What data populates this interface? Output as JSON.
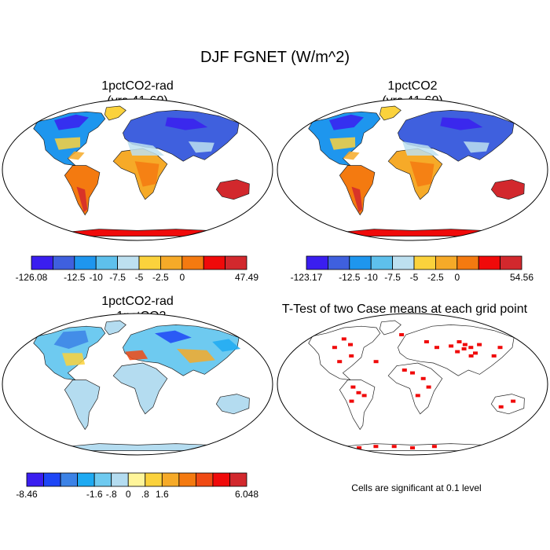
{
  "figure": {
    "title": "DJF FGNET (W/m^2)",
    "note": "Cells are significant at 0.1 level"
  },
  "panels": [
    {
      "title": "1pctCO2-rad\n(yrs 41-60)"
    },
    {
      "title": "1pctCO2\n(yrs 41-60)"
    },
    {
      "title": "1pctCO2-rad\n- 1pctCO2"
    },
    {
      "title": "T-Test of two Case means at each grid point"
    }
  ],
  "colorbars": [
    {
      "labels": [
        "-126.08",
        "-12.5",
        "-10",
        "-7.5",
        "-5",
        "-2.5",
        "0",
        "47.49"
      ],
      "colors": [
        "#3a1ef0",
        "#3f60de",
        "#1e96ee",
        "#5ec0ec",
        "#bde0f0",
        "#fbd23c",
        "#f6aa28",
        "#f47a10",
        "#f00a0a",
        "#d2282d"
      ]
    },
    {
      "labels": [
        "-123.17",
        "-12.5",
        "-10",
        "-7.5",
        "-5",
        "-2.5",
        "0",
        "54.56"
      ],
      "colors": [
        "#3a1ef0",
        "#3f60de",
        "#1e96ee",
        "#5ec0ec",
        "#bde0f0",
        "#fbd23c",
        "#f6aa28",
        "#f47a10",
        "#f00a0a",
        "#d2282d"
      ]
    },
    {
      "labels": [
        "-8.46",
        "-1.6",
        "-.8",
        "0",
        ".8",
        "1.6",
        "6.048"
      ],
      "colors": [
        "#3a1ef0",
        "#1e46f6",
        "#3c82e6",
        "#1eaaf2",
        "#6ecaf0",
        "#b4dcf0",
        "#fff59a",
        "#fbd23c",
        "#f6aa28",
        "#f47a10",
        "#f04a14",
        "#f00a0a",
        "#d2282d"
      ]
    }
  ],
  "chart_data": [
    {
      "type": "heatmap",
      "title": "1pctCO2-rad (yrs 41-60)",
      "field": "DJF FGNET",
      "units": "W/m^2",
      "levels": [
        -126.08,
        -12.5,
        -10,
        -7.5,
        -5,
        -2.5,
        0,
        47.49
      ]
    },
    {
      "type": "heatmap",
      "title": "1pctCO2 (yrs 41-60)",
      "field": "DJF FGNET",
      "units": "W/m^2",
      "levels": [
        -123.17,
        -12.5,
        -10,
        -7.5,
        -5,
        -2.5,
        0,
        54.56
      ]
    },
    {
      "type": "heatmap",
      "title": "1pctCO2-rad - 1pctCO2",
      "field": "DJF FGNET",
      "units": "W/m^2",
      "levels": [
        -8.46,
        -1.6,
        -0.8,
        0,
        0.8,
        1.6,
        6.048
      ]
    },
    {
      "type": "heatmap",
      "title": "T-Test of two Case means at each grid point",
      "significance_level": 0.1
    }
  ]
}
